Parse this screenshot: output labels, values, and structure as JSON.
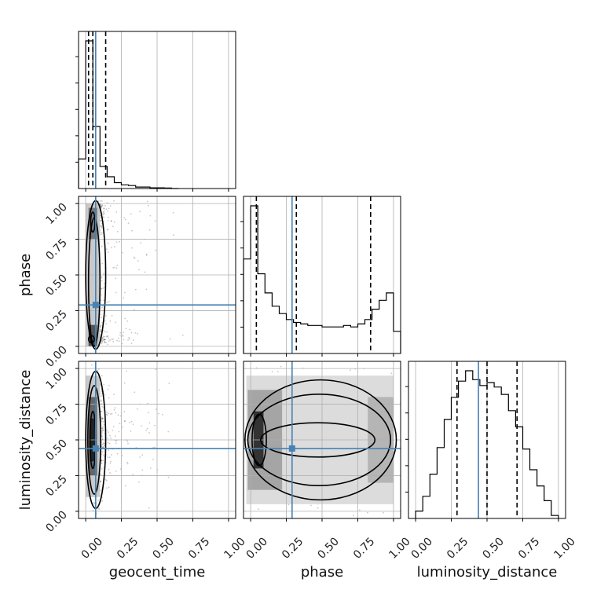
{
  "chart_data": {
    "type": "corner",
    "parameters": [
      "geocent_time",
      "phase",
      "luminosity_distance"
    ],
    "ticks": [
      0.0,
      0.25,
      0.5,
      0.75,
      1.0
    ],
    "tick_labels": [
      "0.00",
      "0.25",
      "0.50",
      "0.75",
      "1.00"
    ],
    "ranges": [
      [
        -0.05,
        1.05
      ],
      [
        -0.05,
        1.05
      ],
      [
        -0.05,
        1.05
      ]
    ],
    "grid": true,
    "truths": [
      0.07,
      0.29,
      0.44
    ],
    "quantiles": [
      [
        0.02,
        0.05,
        0.14
      ],
      [
        0.04,
        0.32,
        0.84
      ],
      [
        0.29,
        0.5,
        0.71
      ]
    ],
    "histograms": [
      {
        "bin_edges": [
          -0.05,
          0.0,
          0.05,
          0.1,
          0.15,
          0.2,
          0.25,
          0.3,
          0.35,
          0.4,
          0.45,
          0.5,
          0.55,
          0.6,
          0.65
        ],
        "counts": [
          0.2,
          1.0,
          0.42,
          0.15,
          0.08,
          0.04,
          0.025,
          0.02,
          0.01,
          0.01,
          0.005,
          0.005,
          0.003,
          0.0
        ]
      },
      {
        "bin_edges": [
          -0.05,
          0.0,
          0.05,
          0.1,
          0.15,
          0.2,
          0.25,
          0.3,
          0.35,
          0.4,
          0.45,
          0.5,
          0.55,
          0.6,
          0.65,
          0.7,
          0.75,
          0.8,
          0.85,
          0.9,
          0.95,
          1.0,
          1.05
        ],
        "counts": [
          0.64,
          1.0,
          0.54,
          0.41,
          0.32,
          0.27,
          0.23,
          0.21,
          0.2,
          0.19,
          0.19,
          0.18,
          0.18,
          0.18,
          0.19,
          0.18,
          0.2,
          0.23,
          0.3,
          0.36,
          0.41,
          0.15
        ]
      },
      {
        "bin_edges": [
          0.0,
          0.05,
          0.1,
          0.15,
          0.2,
          0.25,
          0.3,
          0.35,
          0.4,
          0.45,
          0.5,
          0.55,
          0.6,
          0.65,
          0.7,
          0.75,
          0.8,
          0.85,
          0.9,
          0.95,
          1.0
        ],
        "counts": [
          0.05,
          0.15,
          0.3,
          0.48,
          0.67,
          0.82,
          0.93,
          1.0,
          0.94,
          0.9,
          0.92,
          0.89,
          0.84,
          0.73,
          0.62,
          0.47,
          0.33,
          0.22,
          0.12,
          0.02
        ]
      }
    ]
  }
}
